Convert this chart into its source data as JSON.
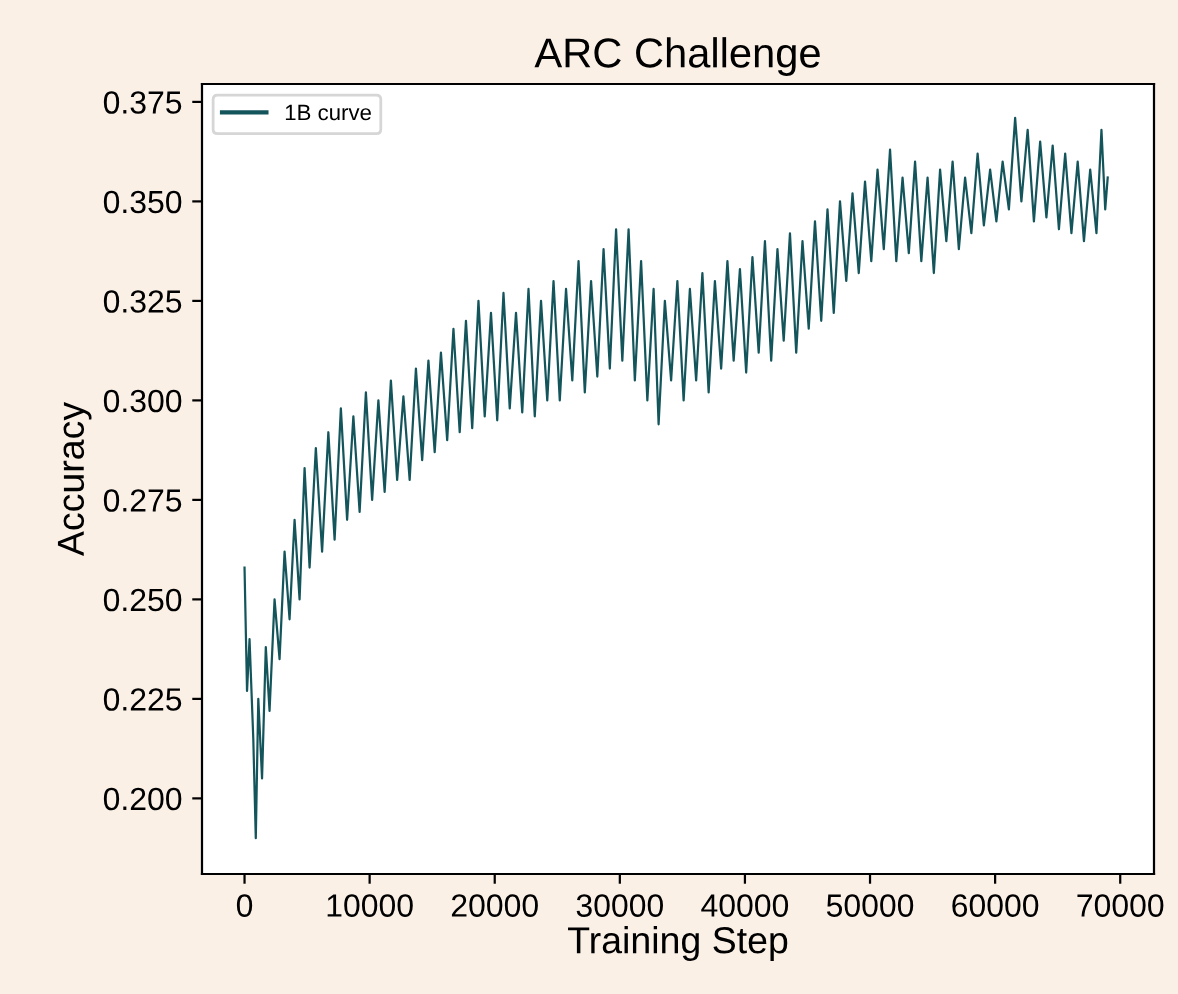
{
  "chart_data": {
    "type": "line",
    "title": "ARC Challenge",
    "xlabel": "Training Step",
    "ylabel": "Accuracy",
    "xlim": [
      -3400,
      72700
    ],
    "ylim": [
      0.181,
      0.3795
    ],
    "xticks": [
      0,
      10000,
      20000,
      30000,
      40000,
      50000,
      60000,
      70000
    ],
    "yticks": [
      {
        "value": 0.2,
        "label": "0.200"
      },
      {
        "value": 0.225,
        "label": "0.225"
      },
      {
        "value": 0.25,
        "label": "0.250"
      },
      {
        "value": 0.275,
        "label": "0.275"
      },
      {
        "value": 0.3,
        "label": "0.300"
      },
      {
        "value": 0.325,
        "label": "0.325"
      },
      {
        "value": 0.35,
        "label": "0.350"
      },
      {
        "value": 0.375,
        "label": "0.375"
      }
    ],
    "grid": false,
    "legend": "top left",
    "marker": "none",
    "line_style": "solid",
    "series": [
      {
        "name": "1B curve",
        "color": "#14555c",
        "x": [
          0,
          200,
          400,
          700,
          900,
          1100,
          1400,
          1700,
          2000,
          2400,
          2800,
          3200,
          3600,
          4000,
          4400,
          4800,
          5200,
          5700,
          6200,
          6700,
          7200,
          7700,
          8200,
          8700,
          9200,
          9700,
          10200,
          10700,
          11200,
          11700,
          12200,
          12700,
          13200,
          13700,
          14200,
          14700,
          15200,
          15700,
          16200,
          16700,
          17200,
          17700,
          18200,
          18700,
          19200,
          19700,
          20200,
          20700,
          21200,
          21700,
          22200,
          22700,
          23200,
          23700,
          24200,
          24700,
          25200,
          25700,
          26200,
          26700,
          27200,
          27700,
          28200,
          28700,
          29200,
          29700,
          30200,
          30700,
          31200,
          31700,
          32200,
          32700,
          33100,
          33600,
          34100,
          34600,
          35100,
          35600,
          36100,
          36600,
          37100,
          37600,
          38100,
          38600,
          39100,
          39600,
          40100,
          40600,
          41100,
          41600,
          42100,
          42600,
          43100,
          43600,
          44100,
          44600,
          45100,
          45600,
          46100,
          46600,
          47100,
          47600,
          48100,
          48600,
          49100,
          49600,
          50100,
          50600,
          51100,
          51600,
          52100,
          52600,
          53100,
          53600,
          54100,
          54600,
          55100,
          55600,
          56100,
          56600,
          57100,
          57600,
          58100,
          58600,
          59100,
          59600,
          60100,
          60600,
          61100,
          61600,
          62100,
          62600,
          63100,
          63600,
          64100,
          64600,
          65100,
          65600,
          66100,
          66600,
          67100,
          67600,
          68100,
          68500,
          68800,
          69000
        ],
        "values": [
          0.258,
          0.227,
          0.24,
          0.215,
          0.19,
          0.225,
          0.205,
          0.238,
          0.222,
          0.25,
          0.235,
          0.262,
          0.245,
          0.27,
          0.25,
          0.283,
          0.258,
          0.288,
          0.262,
          0.292,
          0.265,
          0.298,
          0.27,
          0.296,
          0.272,
          0.302,
          0.275,
          0.3,
          0.277,
          0.305,
          0.28,
          0.301,
          0.28,
          0.308,
          0.285,
          0.31,
          0.287,
          0.312,
          0.29,
          0.318,
          0.292,
          0.32,
          0.293,
          0.325,
          0.296,
          0.322,
          0.295,
          0.327,
          0.298,
          0.322,
          0.297,
          0.328,
          0.296,
          0.325,
          0.3,
          0.33,
          0.3,
          0.328,
          0.305,
          0.335,
          0.302,
          0.33,
          0.306,
          0.338,
          0.308,
          0.343,
          0.31,
          0.343,
          0.305,
          0.335,
          0.3,
          0.328,
          0.294,
          0.325,
          0.305,
          0.33,
          0.3,
          0.328,
          0.305,
          0.332,
          0.302,
          0.33,
          0.308,
          0.335,
          0.31,
          0.333,
          0.307,
          0.336,
          0.312,
          0.34,
          0.31,
          0.338,
          0.315,
          0.342,
          0.312,
          0.34,
          0.318,
          0.345,
          0.32,
          0.348,
          0.322,
          0.35,
          0.33,
          0.352,
          0.332,
          0.355,
          0.335,
          0.358,
          0.338,
          0.363,
          0.335,
          0.356,
          0.337,
          0.36,
          0.335,
          0.356,
          0.332,
          0.358,
          0.34,
          0.36,
          0.338,
          0.356,
          0.342,
          0.362,
          0.344,
          0.358,
          0.345,
          0.36,
          0.348,
          0.371,
          0.35,
          0.368,
          0.345,
          0.365,
          0.346,
          0.364,
          0.343,
          0.362,
          0.342,
          0.36,
          0.34,
          0.358,
          0.342,
          0.368,
          0.348,
          0.356
        ]
      }
    ]
  }
}
